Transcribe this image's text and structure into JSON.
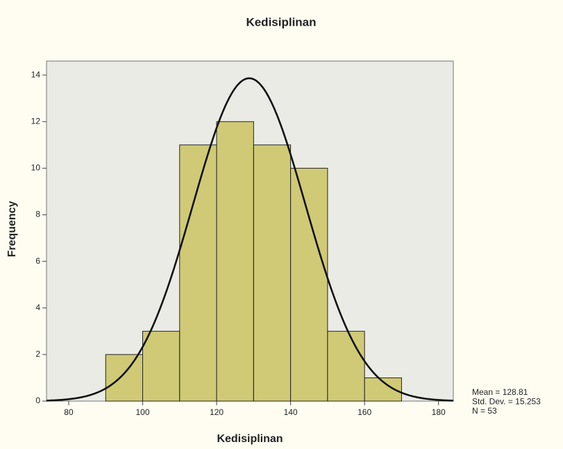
{
  "chart_data": {
    "type": "histogram",
    "title": "Kedisiplinan",
    "x_label": "Kedisiplinan",
    "y_label": "Frequency",
    "bins": [
      90,
      100,
      110,
      120,
      130,
      140,
      150,
      160,
      170
    ],
    "counts": [
      2,
      3,
      11,
      12,
      11,
      10,
      3,
      1
    ],
    "color": "#c9c25a",
    "xlim": [
      74,
      184
    ],
    "xticks": [
      80,
      100,
      120,
      140,
      160,
      180
    ],
    "ylim": [
      0,
      14.6
    ],
    "yticks": [
      0,
      2,
      4,
      6,
      8,
      10,
      12,
      14
    ],
    "grid": false,
    "normal_curve": true,
    "stats": [
      {
        "value": 128.81,
        "label": "Mean = 128.81"
      },
      {
        "value": 15.253,
        "label": "Std. Dev. = 15.253"
      },
      {
        "value": 53,
        "label": "N = 53"
      }
    ]
  }
}
